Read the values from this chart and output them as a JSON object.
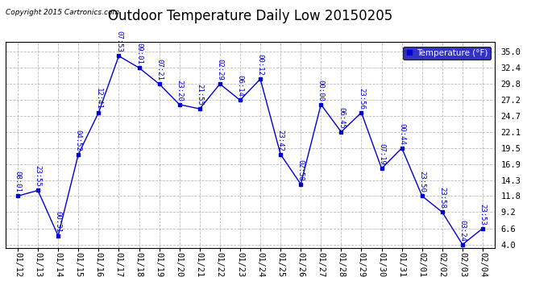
{
  "title": "Outdoor Temperature Daily Low 20150205",
  "copyright": "Copyright 2015 Cartronics.com",
  "legend_label": "Temperature (°F)",
  "x_labels": [
    "01/12",
    "01/13",
    "01/14",
    "01/15",
    "01/16",
    "01/17",
    "01/18",
    "01/19",
    "01/20",
    "01/21",
    "01/22",
    "01/23",
    "01/24",
    "01/25",
    "01/26",
    "01/27",
    "01/28",
    "01/29",
    "01/30",
    "01/31",
    "02/01",
    "02/02",
    "02/03",
    "02/04"
  ],
  "y_values": [
    11.8,
    12.7,
    5.4,
    18.5,
    25.2,
    34.3,
    32.4,
    29.8,
    26.5,
    25.8,
    29.8,
    27.2,
    30.6,
    18.5,
    13.7,
    26.5,
    22.1,
    25.2,
    16.2,
    19.5,
    11.8,
    9.2,
    4.0,
    6.6
  ],
  "time_labels": [
    "08:01",
    "23:55",
    "00:31",
    "04:52",
    "12:41",
    "07:53",
    "09:01",
    "07:21",
    "23:20",
    "21:55",
    "02:29",
    "06:14",
    "00:12",
    "23:42",
    "02:58",
    "00:00",
    "06:45",
    "23:56",
    "07:19",
    "00:44",
    "23:50",
    "23:58",
    "03:24",
    "23:53"
  ],
  "line_color": "#0000cc",
  "marker_color": "#0000cc",
  "bg_color": "#ffffff",
  "grid_color": "#aaaaaa",
  "yticks": [
    4.0,
    6.6,
    9.2,
    11.8,
    14.3,
    16.9,
    19.5,
    22.1,
    24.7,
    27.2,
    29.8,
    32.4,
    35.0
  ],
  "ylim": [
    3.5,
    36.5
  ],
  "xlim": [
    -0.6,
    23.6
  ],
  "title_fontsize": 12,
  "axis_fontsize": 7.5,
  "label_fontsize": 6.5,
  "legend_bg": "#0000bb",
  "legend_fg": "#ffffff"
}
